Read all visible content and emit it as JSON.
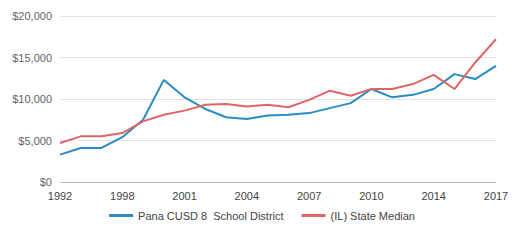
{
  "chart_data": {
    "type": "line",
    "categories": [
      "1992",
      null,
      null,
      "1998",
      null,
      null,
      "2001",
      null,
      null,
      "2004",
      null,
      null,
      "2007",
      null,
      null,
      "2010",
      null,
      null,
      "2014",
      null,
      null,
      "2017"
    ],
    "series": [
      {
        "name": "Pana CUSD 8  School District",
        "color": "#2b8cc4",
        "values": [
          3300,
          4100,
          4100,
          5400,
          7500,
          12300,
          10200,
          8800,
          7800,
          7600,
          8000,
          8100,
          8300,
          8900,
          9500,
          11200,
          10200,
          10500,
          11200,
          13000,
          12400,
          14000
        ]
      },
      {
        "name": "(IL) State Median",
        "color": "#e06666",
        "values": [
          4700,
          5500,
          5500,
          5900,
          7300,
          8100,
          8600,
          9300,
          9400,
          9100,
          9300,
          9000,
          9900,
          11000,
          10400,
          11200,
          11200,
          11800,
          12900,
          11200,
          14400,
          17200
        ]
      }
    ],
    "ylim": [
      0,
      20000
    ],
    "yticks": [
      {
        "value": 0,
        "label": "$0"
      },
      {
        "value": 5000,
        "label": "$5,000"
      },
      {
        "value": 10000,
        "label": "$10,000"
      },
      {
        "value": 15000,
        "label": "$15,000"
      },
      {
        "value": 20000,
        "label": "$20,000"
      }
    ],
    "grid": true,
    "legend": "bottom"
  }
}
